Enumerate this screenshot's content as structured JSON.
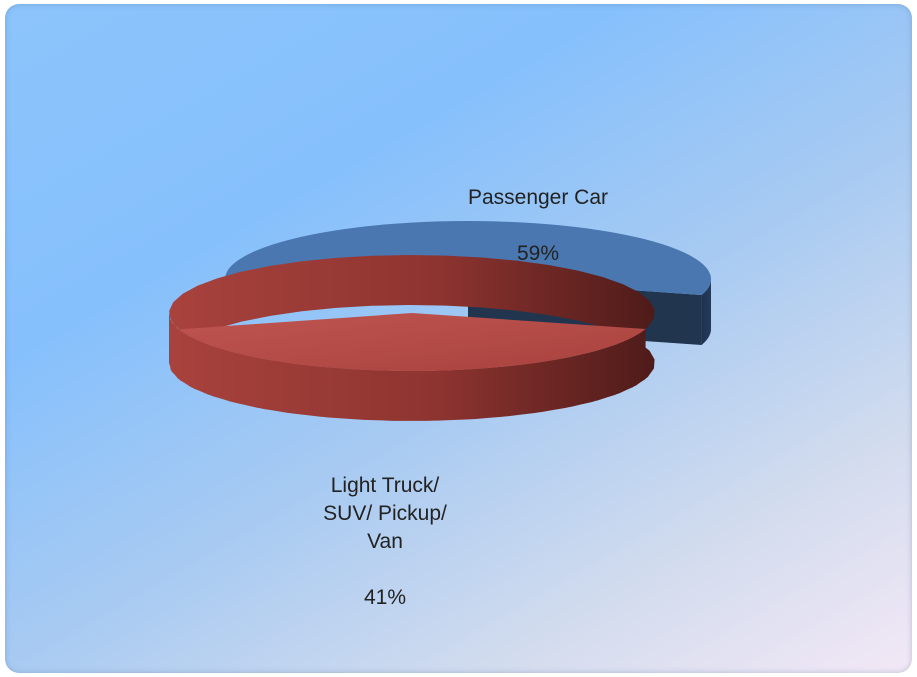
{
  "chart_data": {
    "type": "pie",
    "title": "",
    "slices": [
      {
        "name": "Passenger Car",
        "value": 59,
        "percent_label": "59%",
        "color": "#4a77b0",
        "side_color": "#22354f"
      },
      {
        "name": "Light Truck/\nSUV/ Pickup/\nVan",
        "value": 41,
        "percent_label": "41%",
        "color": "#b34c47",
        "side_color": "#7a2a26"
      }
    ],
    "style": "3d-exploded",
    "legend": "none"
  }
}
